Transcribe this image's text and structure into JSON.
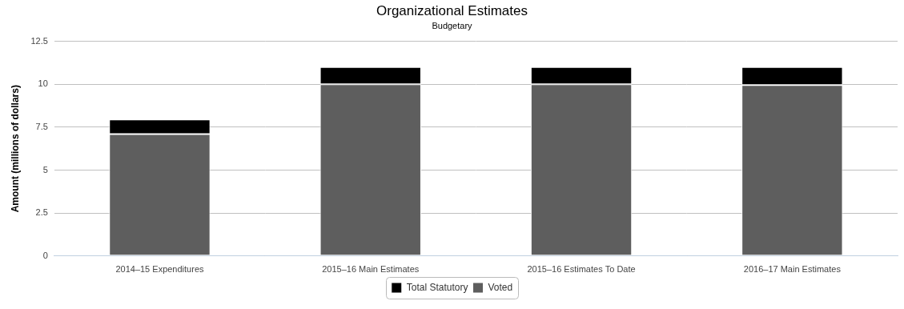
{
  "chart_data": {
    "type": "bar",
    "title": "Organizational Estimates",
    "subtitle": "Budgetary",
    "y_label": "Amount (millions of dollars)",
    "categories": [
      "2014–15 Expenditures",
      "2015–16 Main Estimates",
      "2015–16 Estimates To Date",
      "2016–17 Main Estimates"
    ],
    "series": [
      {
        "name": "Total Statutory",
        "color": "#000000",
        "values": [
          0.85,
          1.0,
          1.0,
          1.05
        ]
      },
      {
        "name": "Voted",
        "color": "#5e5e5e",
        "values": [
          7.1,
          10.0,
          10.0,
          9.95
        ]
      }
    ],
    "stacked": true,
    "ylim": [
      0,
      12.5
    ],
    "yticks": [
      0,
      2.5,
      5,
      7.5,
      10,
      12.5
    ],
    "grid": true,
    "legend": "bottom"
  }
}
